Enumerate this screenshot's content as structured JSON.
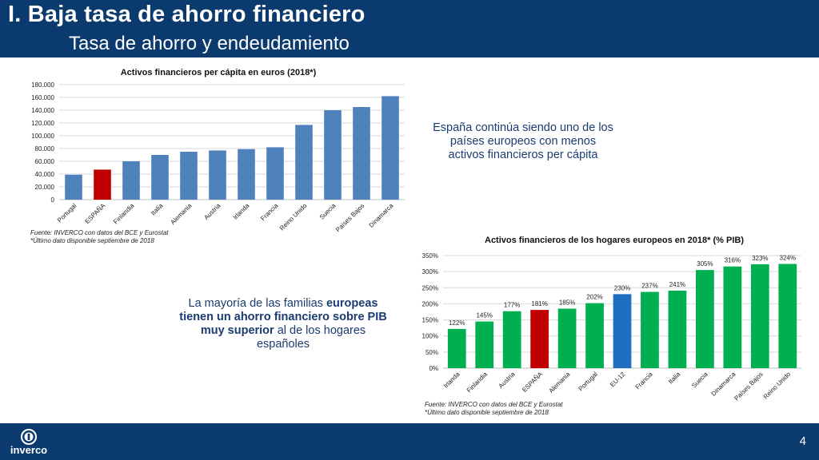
{
  "header": {
    "title": "I. Baja tasa de ahorro financiero",
    "subtitle": "Tasa de ahorro y endeudamiento"
  },
  "callout_top": "España continúa siendo uno de los países europeos con menos activos financieros per cápita",
  "callout_bottom": {
    "t1": "La mayoría de las familias ",
    "b1": "europeas tienen un ahorro financiero sobre PIB muy superior",
    "t2": " al de los hogares españoles"
  },
  "source_left": {
    "line1": "Fuente: INVERCO con datos del BCE y Eurostat",
    "line2": "*Último dato disponible septiembre de 2018"
  },
  "source_right": {
    "line1": "Fuente: INVERCO con datos del BCE y Eurostat",
    "line2": "*Último dato disponible septiembre de 2018"
  },
  "footer": {
    "logo_text": "inverco",
    "page_number": "4"
  },
  "colors": {
    "header_bg": "#0b3a6e",
    "blue_bar": "#4f81bd",
    "red_bar": "#c00000",
    "green_bar": "#00b050",
    "eu_bar": "#1f6fc0",
    "callout_text": "#1a3c70"
  },
  "chart_data": [
    {
      "type": "bar",
      "title": "Activos financieros per cápita en euros (2018*)",
      "categories": [
        "Portugal",
        "ESPAÑA",
        "Finlandia",
        "Italia",
        "Alemania",
        "Austria",
        "Irlanda",
        "Francia",
        "Reino Unido",
        "Suecia",
        "Países Bajos",
        "Dinamarca"
      ],
      "values": [
        39000,
        47000,
        60000,
        70000,
        75000,
        77000,
        79000,
        82000,
        117000,
        140000,
        145000,
        162000
      ],
      "highlight": {
        "ESPAÑA": "#c00000"
      },
      "ylim": [
        0,
        180000
      ],
      "yticks": [
        "0",
        "20.000",
        "40.000",
        "60.000",
        "80.000",
        "100.000",
        "120.000",
        "140.000",
        "160.000",
        "180.000"
      ],
      "ytick_values": [
        0,
        20000,
        40000,
        60000,
        80000,
        100000,
        120000,
        140000,
        160000,
        180000
      ],
      "grid": true
    },
    {
      "type": "bar",
      "title": "Activos financieros de los hogares europeos en 2018* (% PIB)",
      "categories": [
        "Irlanda",
        "Finlandia",
        "Austria",
        "ESPAÑA",
        "Alemania",
        "Portugal",
        "EU-12",
        "Francia",
        "Italia",
        "Suecia",
        "Dinamarca",
        "Países Bajos",
        "Reino Unido"
      ],
      "values": [
        122,
        145,
        177,
        181,
        185,
        202,
        230,
        237,
        241,
        305,
        316,
        323,
        324
      ],
      "labels": [
        "122%",
        "145%",
        "177%",
        "181%",
        "185%",
        "202%",
        "230%",
        "237%",
        "241%",
        "305%",
        "316%",
        "323%",
        "324%"
      ],
      "highlight": {
        "ESPAÑA": "#c00000",
        "EU-12": "#1f6fc0"
      },
      "ylim": [
        0,
        350
      ],
      "yticks": [
        "0%",
        "50%",
        "100%",
        "150%",
        "200%",
        "250%",
        "300%",
        "350%"
      ],
      "ytick_values": [
        0,
        50,
        100,
        150,
        200,
        250,
        300,
        350
      ],
      "grid": true
    }
  ]
}
